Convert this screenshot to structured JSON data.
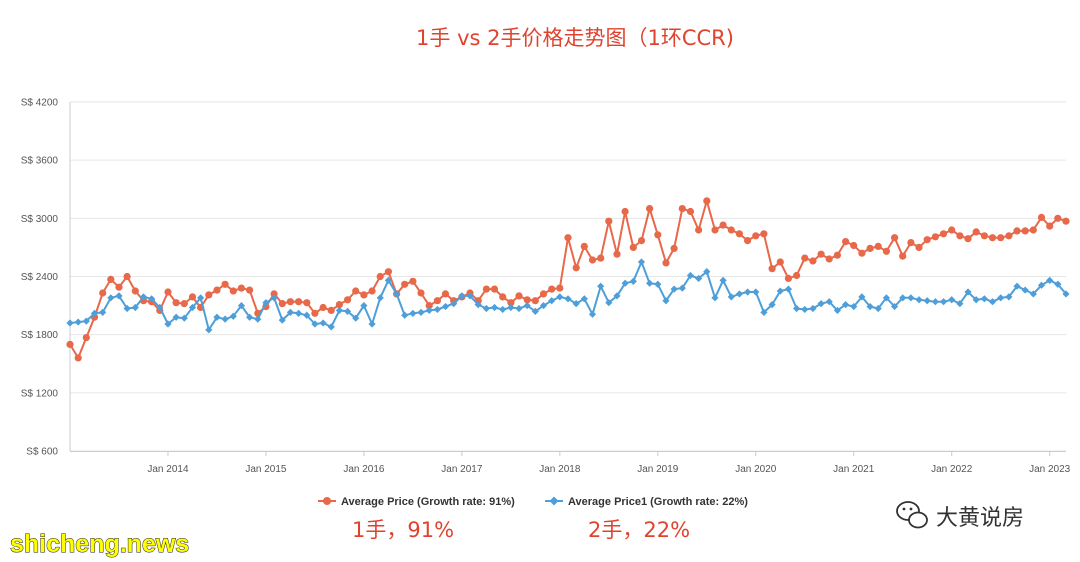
{
  "chart_data": {
    "type": "line",
    "title": "1手 vs 2手价格走势图（1环CCR)",
    "yticks": [
      "S$ 600",
      "S$ 1200",
      "S$ 1800",
      "S$ 2400",
      "S$ 3000",
      "S$ 3600",
      "S$ 4200"
    ],
    "ylim": [
      600,
      4200
    ],
    "xlim": [
      "2013-01",
      "2023-03"
    ],
    "x_ticks": [
      {
        "label": "Jan 2014",
        "date": "2014-01"
      },
      {
        "label": "Jan 2015",
        "date": "2015-01"
      },
      {
        "label": "Jan 2016",
        "date": "2016-01"
      },
      {
        "label": "Jan 2017",
        "date": "2017-01"
      },
      {
        "label": "Jan 2018",
        "date": "2018-01"
      },
      {
        "label": "Jan 2019",
        "date": "2019-01"
      },
      {
        "label": "Jan 2020",
        "date": "2020-01"
      },
      {
        "label": "Jan 2021",
        "date": "2021-01"
      },
      {
        "label": "Jan 2022",
        "date": "2022-01"
      },
      {
        "label": "Jan 2023",
        "date": "2023-01"
      }
    ],
    "grid": "horizontal",
    "legend_position": "bottom",
    "x_start": "2013-01",
    "series": [
      {
        "name": "Average Price (Growth rate: 91%)",
        "color": "#e8684a",
        "values": [
          1700,
          1560,
          1770,
          1980,
          2230,
          2370,
          2290,
          2400,
          2250,
          2150,
          2140,
          2050,
          2240,
          2130,
          2120,
          2190,
          2080,
          2210,
          2260,
          2320,
          2250,
          2280,
          2260,
          2020,
          2090,
          2220,
          2120,
          2140,
          2140,
          2130,
          2020,
          2080,
          2050,
          2110,
          2160,
          2250,
          2210,
          2250,
          2400,
          2450,
          2220,
          2320,
          2350,
          2230,
          2100,
          2150,
          2220,
          2150,
          2190,
          2230,
          2150,
          2270,
          2270,
          2190,
          2130,
          2200,
          2160,
          2150,
          2220,
          2270,
          2280,
          2800,
          2490,
          2710,
          2570,
          2590,
          2970,
          2630,
          3070,
          2700,
          2770,
          3100,
          2830,
          2540,
          2690,
          3100,
          3070,
          2880,
          3180,
          2880,
          2930,
          2880,
          2840,
          2770,
          2820,
          2840,
          2480,
          2550,
          2380,
          2410,
          2590,
          2560,
          2630,
          2580,
          2620,
          2760,
          2720,
          2640,
          2690,
          2710,
          2660,
          2800,
          2610,
          2750,
          2700,
          2780,
          2810,
          2840,
          2880,
          2820,
          2790,
          2860,
          2820,
          2800,
          2800,
          2820,
          2870,
          2870,
          2880,
          3010,
          2920,
          3000,
          2970
        ]
      },
      {
        "name": "Average Price1 (Growth rate: 22%)",
        "color": "#4e9fd9",
        "values": [
          1920,
          1930,
          1940,
          2020,
          2030,
          2180,
          2200,
          2070,
          2080,
          2190,
          2170,
          2080,
          1910,
          1980,
          1970,
          2080,
          2180,
          1850,
          1980,
          1960,
          1990,
          2100,
          1980,
          1960,
          2130,
          2180,
          1950,
          2030,
          2020,
          2000,
          1910,
          1920,
          1880,
          2050,
          2040,
          1970,
          2100,
          1910,
          2180,
          2360,
          2220,
          2000,
          2020,
          2030,
          2050,
          2060,
          2090,
          2120,
          2200,
          2200,
          2110,
          2070,
          2080,
          2060,
          2080,
          2070,
          2100,
          2040,
          2100,
          2150,
          2190,
          2170,
          2120,
          2170,
          2010,
          2300,
          2130,
          2200,
          2330,
          2350,
          2550,
          2330,
          2320,
          2150,
          2270,
          2280,
          2410,
          2380,
          2450,
          2180,
          2360,
          2190,
          2220,
          2240,
          2240,
          2030,
          2110,
          2250,
          2270,
          2070,
          2060,
          2070,
          2120,
          2140,
          2050,
          2110,
          2090,
          2190,
          2090,
          2070,
          2180,
          2090,
          2180,
          2180,
          2160,
          2150,
          2140,
          2140,
          2160,
          2120,
          2240,
          2160,
          2170,
          2140,
          2180,
          2190,
          2300,
          2260,
          2220,
          2310,
          2360,
          2320,
          2220
        ]
      }
    ]
  },
  "annotations": {
    "new_label": "1手，91%",
    "resale_label": "2手，22%"
  },
  "watermark": {
    "brand": "大黄说房",
    "site": "shicheng.news"
  }
}
